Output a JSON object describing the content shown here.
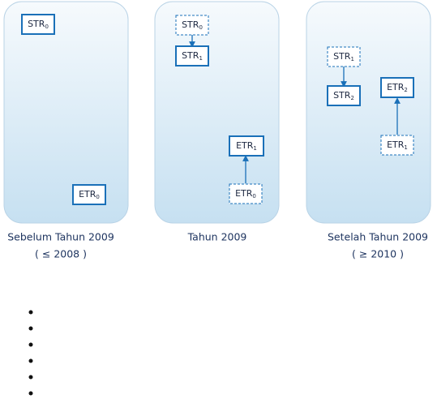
{
  "panels": [
    {
      "caption": "Sebelum Tahun 2009",
      "range": "( ≤ 2008 )",
      "boxes": [
        {
          "label": "STR",
          "sub": "0"
        },
        {
          "label": "ETR",
          "sub": "0"
        }
      ]
    },
    {
      "caption": "Tahun 2009",
      "boxes": [
        {
          "label": "STR",
          "sub": "0"
        },
        {
          "label": "STR",
          "sub": "1"
        },
        {
          "label": "ETR",
          "sub": "1"
        },
        {
          "label": "ETR",
          "sub": "0"
        }
      ]
    },
    {
      "caption": "Setelah Tahun 2009",
      "range": "( ≥ 2010 )",
      "boxes": [
        {
          "label": "STR",
          "sub": "1"
        },
        {
          "label": "STR",
          "sub": "2"
        },
        {
          "label": "ETR",
          "sub": "2"
        },
        {
          "label": "ETR",
          "sub": "1"
        }
      ]
    }
  ]
}
